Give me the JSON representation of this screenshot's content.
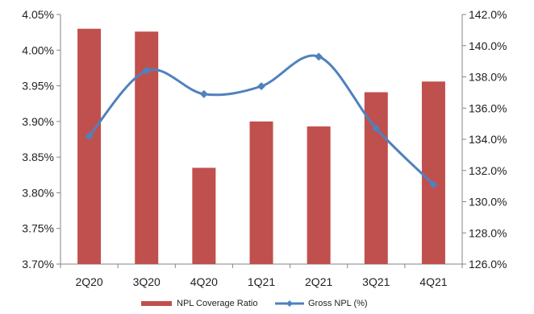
{
  "chart_data": {
    "type": "bar+line",
    "categories": [
      "2Q20",
      "3Q20",
      "4Q20",
      "1Q21",
      "2Q21",
      "3Q21",
      "4Q21"
    ],
    "series": [
      {
        "name": "NPL Coverage Ratio",
        "type": "bar",
        "axis": "left",
        "color": "#c0504d",
        "values": [
          4.03,
          4.026,
          3.835,
          3.9,
          3.893,
          3.941,
          3.956
        ]
      },
      {
        "name": "Gross NPL (%)",
        "type": "line",
        "axis": "right",
        "color": "#4f81bd",
        "values": [
          134.2,
          138.4,
          136.9,
          137.4,
          139.3,
          134.7,
          131.1
        ]
      }
    ],
    "y_left": {
      "ylim": [
        3.7,
        4.05
      ],
      "ticks": [
        3.7,
        3.75,
        3.8,
        3.85,
        3.9,
        3.95,
        4.0,
        4.05
      ],
      "tick_labels": [
        "3.70%",
        "3.75%",
        "3.80%",
        "3.85%",
        "3.90%",
        "3.95%",
        "4.00%",
        "4.05%"
      ]
    },
    "y_right": {
      "ylim": [
        126.0,
        142.0
      ],
      "ticks": [
        126,
        128,
        130,
        132,
        134,
        136,
        138,
        140,
        142
      ],
      "tick_labels": [
        "126.0%",
        "128.0%",
        "130.0%",
        "132.0%",
        "134.0%",
        "136.0%",
        "138.0%",
        "140.0%",
        "142.0%"
      ]
    },
    "grid": false,
    "legend": "bottom-center"
  }
}
